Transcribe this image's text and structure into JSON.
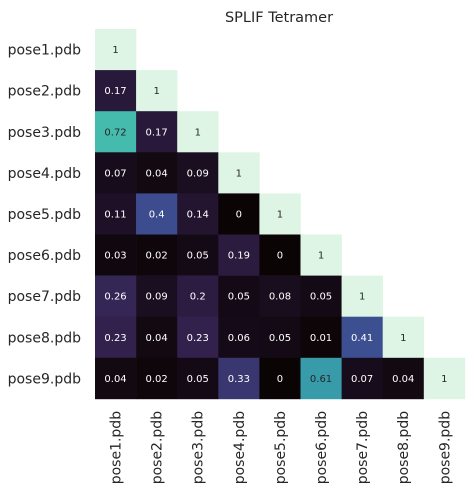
{
  "chart_data": {
    "type": "heatmap",
    "title": "SPLIF Tetramer",
    "row_labels": [
      "pose1.pdb",
      "pose2.pdb",
      "pose3.pdb",
      "pose4.pdb",
      "pose5.pdb",
      "pose6.pdb",
      "pose7.pdb",
      "pose8.pdb",
      "pose9.pdb"
    ],
    "col_labels": [
      "pose1.pdb",
      "pose2.pdb",
      "pose3.pdb",
      "pose4.pdb",
      "pose5.pdb",
      "pose6.pdb",
      "pose7.pdb",
      "pose8.pdb",
      "pose9.pdb"
    ],
    "mask": "upper-triangle",
    "colormap": "mako",
    "values": [
      [
        1
      ],
      [
        0.17,
        1
      ],
      [
        0.72,
        0.17,
        1
      ],
      [
        0.07,
        0.04,
        0.09,
        1
      ],
      [
        0.11,
        0.4,
        0.14,
        0,
        1
      ],
      [
        0.03,
        0.02,
        0.05,
        0.19,
        0,
        1
      ],
      [
        0.26,
        0.09,
        0.2,
        0.05,
        0.08,
        0.05,
        1
      ],
      [
        0.23,
        0.04,
        0.23,
        0.06,
        0.05,
        0.01,
        0.41,
        1
      ],
      [
        0.04,
        0.02,
        0.05,
        0.33,
        0,
        0.61,
        0.07,
        0.04,
        1
      ]
    ],
    "value_labels": [
      [
        "1"
      ],
      [
        "0.17",
        "1"
      ],
      [
        "0.72",
        "0.17",
        "1"
      ],
      [
        "0.07",
        "0.04",
        "0.09",
        "1"
      ],
      [
        "0.11",
        "0.4",
        "0.14",
        "0",
        "1"
      ],
      [
        "0.03",
        "0.02",
        "0.05",
        "0.19",
        "0",
        "1"
      ],
      [
        "0.26",
        "0.09",
        "0.2",
        "0.05",
        "0.08",
        "0.05",
        "1"
      ],
      [
        "0.23",
        "0.04",
        "0.23",
        "0.06",
        "0.05",
        "0.01",
        "0.41",
        "1"
      ],
      [
        "0.04",
        "0.02",
        "0.05",
        "0.33",
        "0",
        "0.61",
        "0.07",
        "0.04",
        "1"
      ]
    ],
    "vlim": [
      0,
      1
    ],
    "grid": false,
    "legend": "none"
  }
}
